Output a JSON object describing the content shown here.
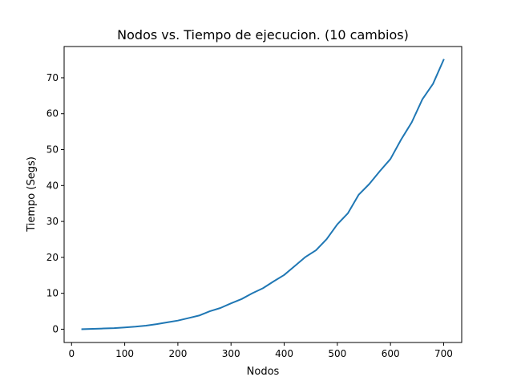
{
  "chart_data": {
    "type": "line",
    "title": "Nodos vs. Tiempo de ejecucion. (10 cambios)",
    "xlabel": "Nodos",
    "ylabel": "Tiempo (Segs)",
    "xlim": [
      -14,
      734
    ],
    "ylim": [
      -3.7,
      78.7
    ],
    "xticks": [
      0,
      100,
      200,
      300,
      400,
      500,
      600,
      700
    ],
    "yticks": [
      0,
      10,
      20,
      30,
      40,
      50,
      60,
      70
    ],
    "grid": false,
    "series": [
      {
        "color": "#1f77b4",
        "x": [
          20,
          40,
          60,
          80,
          100,
          120,
          140,
          160,
          180,
          200,
          220,
          240,
          260,
          280,
          300,
          320,
          340,
          360,
          380,
          400,
          420,
          440,
          460,
          480,
          500,
          520,
          540,
          560,
          580,
          600,
          620,
          640,
          660,
          680,
          700
        ],
        "y": [
          0.0,
          0.1,
          0.2,
          0.3,
          0.5,
          0.7,
          1.0,
          1.4,
          1.9,
          2.4,
          3.1,
          3.8,
          5.0,
          5.9,
          7.2,
          8.4,
          10.0,
          11.4,
          13.3,
          15.1,
          17.6,
          20.1,
          22.0,
          25.1,
          29.2,
          32.3,
          37.4,
          40.4,
          44.0,
          47.4,
          52.8,
          57.6,
          64.0,
          68.3,
          75.0
        ]
      }
    ]
  }
}
